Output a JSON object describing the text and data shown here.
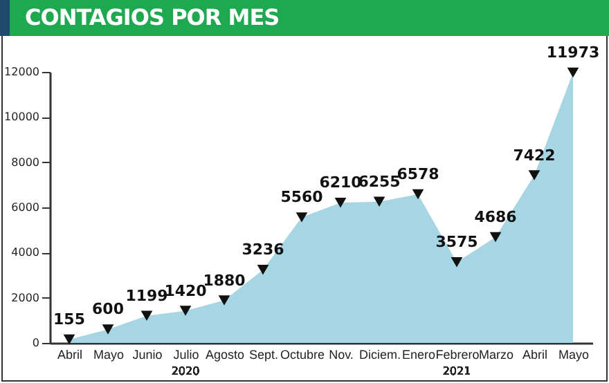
{
  "chart_data": {
    "type": "area",
    "title": "CONTAGIOS POR MES",
    "categories": [
      "Abril",
      "Mayo",
      "Junio",
      "Julio",
      "Agosto",
      "Sept.",
      "Octubre",
      "Nov.",
      "Diciem.",
      "Enero",
      "Febrero",
      "Marzo",
      "Abril",
      "Mayo"
    ],
    "values": [
      155,
      600,
      1199,
      1420,
      1880,
      3236,
      5560,
      6210,
      6255,
      6578,
      3575,
      4686,
      7422,
      11973
    ],
    "color": "#a6d5e3",
    "ylim": [
      0,
      12000
    ],
    "yticks": [
      0,
      2000,
      4000,
      6000,
      8000,
      10000,
      12000
    ],
    "data_labels": true,
    "marker": "triangle",
    "grid": false,
    "annotations": [
      "2020",
      "2021"
    ]
  }
}
